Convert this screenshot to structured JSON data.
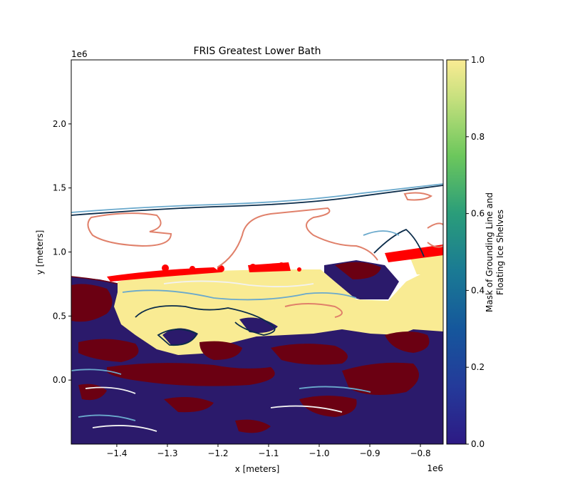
{
  "chart_data": {
    "type": "heatmap",
    "title": "FRIS Greatest Lower Bath",
    "xlabel": "x [meters]",
    "ylabel": "y [meters]",
    "x_offset_label": "1e6",
    "y_offset_label": "1e6",
    "xlim": [
      -1.49,
      -0.755
    ],
    "ylim": [
      -0.5,
      2.5
    ],
    "x_ticks": [
      {
        "value": -1.4,
        "label": "−1.4"
      },
      {
        "value": -1.3,
        "label": "−1.3"
      },
      {
        "value": -1.2,
        "label": "−1.2"
      },
      {
        "value": -1.1,
        "label": "−1.1"
      },
      {
        "value": -1.0,
        "label": "−1.0"
      },
      {
        "value": -0.9,
        "label": "−0.9"
      },
      {
        "value": -0.8,
        "label": "−0.8"
      }
    ],
    "y_ticks": [
      {
        "value": 0.0,
        "label": "0.0"
      },
      {
        "value": 0.5,
        "label": "0.5"
      },
      {
        "value": 1.0,
        "label": "1.0"
      },
      {
        "value": 1.5,
        "label": "1.5"
      },
      {
        "value": 2.0,
        "label": "2.0"
      }
    ],
    "colorbar": {
      "label_line1": "Mask of Grounding Line and",
      "label_line2": "Floating Ice Shelves",
      "range": [
        0.0,
        1.0
      ],
      "colormap": "viridis-like (dark blue to yellow)",
      "ticks": [
        {
          "value": 0.0,
          "label": "0.0"
        },
        {
          "value": 0.2,
          "label": "0.2"
        },
        {
          "value": 0.4,
          "label": "0.4"
        },
        {
          "value": 0.6,
          "label": "0.6"
        },
        {
          "value": 0.8,
          "label": "0.8"
        },
        {
          "value": 1.0,
          "label": "1.0"
        }
      ]
    },
    "colors": {
      "grounded": "#2b1a6b",
      "floating": "#f9eb93",
      "red_band": "#ff0000",
      "contour_dark_red": "#6b0012",
      "contour_salmon": "#e0806a",
      "contour_light_blue": "#6aa9cc",
      "contour_navy": "#0b2c4a",
      "contour_white": "#f2f2f2"
    }
  }
}
